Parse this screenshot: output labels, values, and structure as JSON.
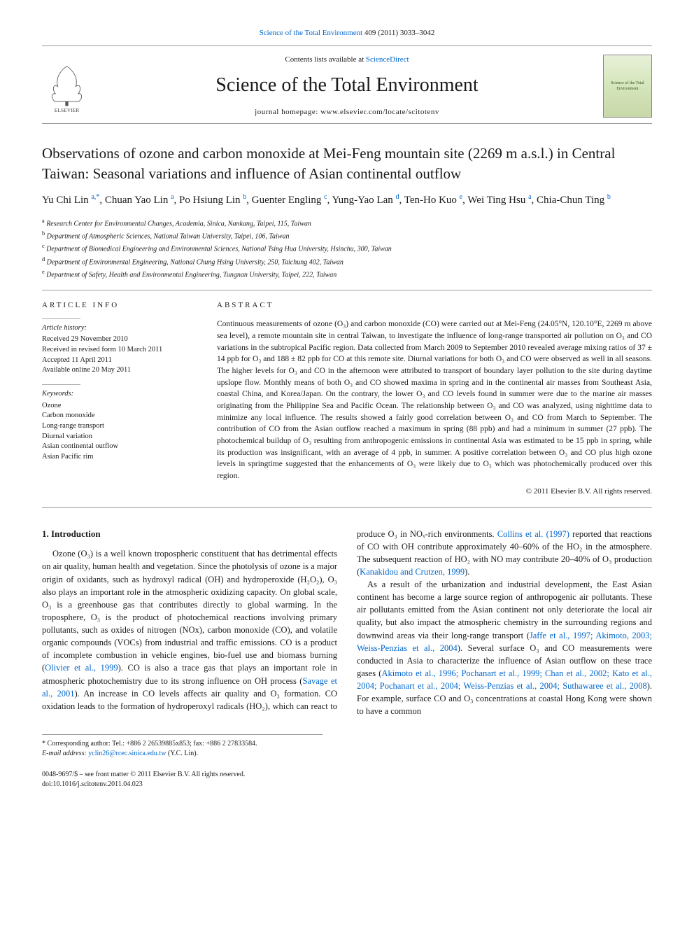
{
  "top_citation": {
    "prefix_journal": "Science of the Total Environment",
    "volume_pages": " 409 (2011) 3033–3042"
  },
  "header": {
    "contents_prefix": "Contents lists available at ",
    "contents_link": "ScienceDirect",
    "journal_title": "Science of the Total Environment",
    "homepage_label": "journal homepage: ",
    "homepage_url": "www.elsevier.com/locate/scitotenv",
    "cover_text": "Science of the Total Environment",
    "publisher": "ELSEVIER"
  },
  "article": {
    "title": "Observations of ozone and carbon monoxide at Mei-Feng mountain site (2269 m a.s.l.) in Central Taiwan: Seasonal variations and influence of Asian continental outflow",
    "authors_html": "Yu Chi Lin <sup>a,*</sup>, Chuan Yao Lin <sup>a</sup>, Po Hsiung Lin <sup>b</sup>, Guenter Engling <sup>c</sup>, Yung-Yao Lan <sup>d</sup>, Ten-Ho Kuo <sup>e</sup>, Wei Ting Hsu <sup>a</sup>, Chia-Chun Ting <sup>b</sup>",
    "affiliations": [
      {
        "key": "a",
        "text": "Research Center for Environmental Changes, Academia, Sinica, Nankang, Taipei, 115, Taiwan"
      },
      {
        "key": "b",
        "text": "Department of Atmospheric Sciences, National Taiwan University, Taipei, 106, Taiwan"
      },
      {
        "key": "c",
        "text": "Department of Biomedical Engineering and Environmental Sciences, National Tsing Hua University, Hsinchu, 300, Taiwan"
      },
      {
        "key": "d",
        "text": "Department of Environmental Engineering, National Chung Hsing University, 250, Taichung 402, Taiwan"
      },
      {
        "key": "e",
        "text": "Department of Safety, Health and Environmental Engineering, Tungnan University, Taipei, 222, Taiwan"
      }
    ]
  },
  "article_info": {
    "heading": "article info",
    "history_label": "Article history:",
    "history": [
      "Received 29 November 2010",
      "Received in revised form 10 March 2011",
      "Accepted 11 April 2011",
      "Available online 20 May 2011"
    ],
    "keywords_label": "Keywords:",
    "keywords": [
      "Ozone",
      "Carbon monoxide",
      "Long-range transport",
      "Diurnal variation",
      "Asian continental outflow",
      "Asian Pacific rim"
    ]
  },
  "abstract": {
    "heading": "abstract",
    "body": "Continuous measurements of ozone (O₃) and carbon monoxide (CO) were carried out at Mei-Feng (24.05°N, 120.10°E, 2269 m above sea level), a remote mountain site in central Taiwan, to investigate the influence of long-range transported air pollution on O₃ and CO variations in the subtropical Pacific region. Data collected from March 2009 to September 2010 revealed average mixing ratios of 37 ± 14 ppb for O₃ and 188 ± 82 ppb for CO at this remote site. Diurnal variations for both O₃ and CO were observed as well in all seasons. The higher levels for O₃ and CO in the afternoon were attributed to transport of boundary layer pollution to the site during daytime upslope flow. Monthly means of both O₃ and CO showed maxima in spring and in the continental air masses from Southeast Asia, coastal China, and Korea/Japan. On the contrary, the lower O₃ and CO levels found in summer were due to the marine air masses originating from the Philippine Sea and Pacific Ocean. The relationship between O₃ and CO was analyzed, using nighttime data to minimize any local influence. The results showed a fairly good correlation between O₃ and CO from March to September. The contribution of CO from the Asian outflow reached a maximum in spring (88 ppb) and had a minimum in summer (27 ppb). The photochemical buildup of O₃ resulting from anthropogenic emissions in continental Asia was estimated to be 15 ppb in spring, while its production was insignificant, with an average of 4 ppb, in summer. A positive correlation between O₃ and CO plus high ozone levels in springtime suggested that the enhancements of O₃ were likely due to O₃ which was photochemically produced over this region.",
    "copyright": "© 2011 Elsevier B.V. All rights reserved."
  },
  "section1": {
    "heading": "1. Introduction",
    "para1": "Ozone (O₃) is a well known tropospheric constituent that has detrimental effects on air quality, human health and vegetation. Since the photolysis of ozone is a major origin of oxidants, such as hydroxyl radical (OH) and hydroperoxide (H₂O₂), O₃ also plays an important role in the atmospheric oxidizing capacity. On global scale, O₃ is a greenhouse gas that contributes directly to global warming. In the troposphere, O₃ is the product of photochemical reactions involving primary pollutants, such as oxides of nitrogen (NOx), carbon monoxide (CO), and volatile organic compounds (VOCs) from industrial and traffic emissions. CO is a product of incomplete combustion in vehicle engines, bio-fuel use and biomass burning (",
    "para1_ref": "Olivier et al., 1999",
    "para1_b": "). CO is also a trace gas that plays an important role in atmospheric photochemistry due to its strong influence on OH process (",
    "para1_ref2": "Savage et al., 2001",
    "para1_c": "). An increase in CO levels affects air quality and O₃ formation. CO oxidation leads to the formation of hydroperoxyl radicals (HO₂), which can react to produce O₃ in NOₓ-rich environments. ",
    "para1_ref3": "Collins et al. (1997)",
    "para1_d": " reported that reactions of CO with OH contribute approximately 40–60% of the HO₂ in the atmosphere. The subsequent reaction of HO₂ with NO may contribute 20–40% of O₃ production (",
    "para1_ref4": "Kanakidou and Crutzen, 1999",
    "para1_e": ").",
    "para2_a": "As a result of the urbanization and industrial development, the East Asian continent has become a large source region of anthropogenic air pollutants. These air pollutants emitted from the Asian continent not only deteriorate the local air quality, but also impact the atmospheric chemistry in the surrounding regions and downwind areas via their long-range transport (",
    "para2_ref1": "Jaffe et al., 1997; Akimoto, 2003; Weiss-Penzias et al., 2004",
    "para2_b": "). Several surface O₃ and CO measurements were conducted in Asia to characterize the influence of Asian outflow on these trace gases (",
    "para2_ref2": "Akimoto et al., 1996; Pochanart et al., 1999; Chan et al., 2002; Kato et al., 2004; Pochanart et al., 2004; Weiss-Penzias et al., 2004; Suthawaree et al., 2008",
    "para2_c": "). For example, surface CO and O₃ concentrations at coastal Hong Kong were shown to have a common"
  },
  "footnote": {
    "corr": "* Corresponding author: Tel.: +886 2 26539885x853; fax: +886 2 27833584.",
    "email_label": "E-mail address: ",
    "email": "yclin26@rcec.sinica.edu.tw",
    "email_suffix": " (Y.C. Lin)."
  },
  "bottom": {
    "left1": "0048-9697/$ – see front matter © 2011 Elsevier B.V. All rights reserved.",
    "left2": "doi:10.1016/j.scitotenv.2011.04.023"
  },
  "colors": {
    "link": "#0066cc",
    "text": "#1a1a1a",
    "rule": "#999999",
    "bg": "#ffffff",
    "cover_bg_top": "#e8f0d8",
    "cover_bg_bot": "#c8d8a8",
    "logo_orange": "#ff7a00"
  },
  "typography": {
    "body_fontsize_pt": 9,
    "journal_title_pt": 21,
    "article_title_pt": 16,
    "authors_pt": 11,
    "affiliations_pt": 7.5,
    "abstract_pt": 8.5,
    "footnote_pt": 7.5
  }
}
